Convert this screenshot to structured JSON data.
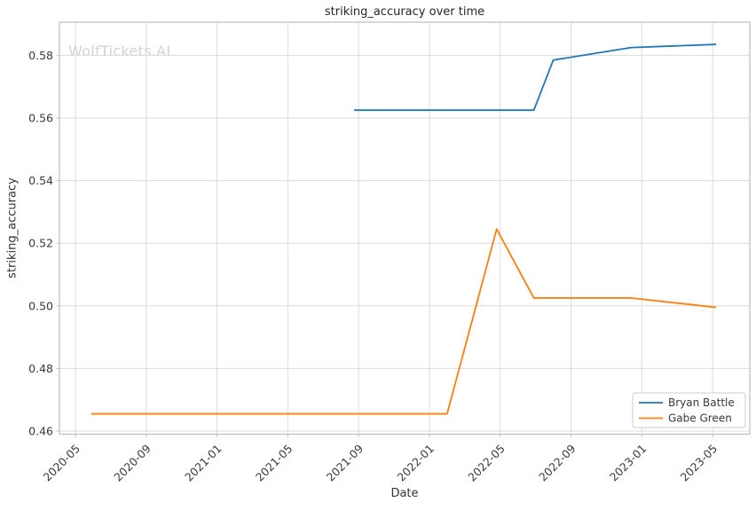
{
  "watermark": {
    "text": "WolfTickets.AI",
    "color": "#d3d3d3"
  },
  "chart_data": {
    "type": "line",
    "title": "striking_accuracy over time",
    "xlabel": "Date",
    "ylabel": "striking_accuracy",
    "grid": true,
    "x_unit": "months since 2020-05",
    "x_tick_labels": [
      "2020-05",
      "2020-09",
      "2021-01",
      "2021-05",
      "2021-09",
      "2022-01",
      "2022-05",
      "2022-09",
      "2023-01",
      "2023-05"
    ],
    "x_tick_month_index": [
      0,
      4,
      8,
      12,
      16,
      20,
      24,
      28,
      32,
      36
    ],
    "y_tick_labels": [
      "0.46",
      "0.48",
      "0.50",
      "0.52",
      "0.54",
      "0.56",
      "0.58"
    ],
    "y_ticks": [
      0.46,
      0.48,
      0.5,
      0.52,
      0.54,
      0.56,
      0.58
    ],
    "x_range_month_index": [
      -0.9,
      38.1
    ],
    "ylim": [
      0.459,
      0.5906
    ],
    "legend": {
      "position": "lower right",
      "entries": [
        "Bryan Battle",
        "Gabe Green"
      ]
    },
    "series": [
      {
        "name": "Bryan Battle",
        "color": "#1f77b4",
        "points": [
          {
            "date": "2021-08",
            "month_index": 15.75,
            "value": 0.5625
          },
          {
            "date": "2022-06",
            "month_index": 25.9,
            "value": 0.5625
          },
          {
            "date": "2022-08",
            "month_index": 27.0,
            "value": 0.5785
          },
          {
            "date": "2022-12",
            "month_index": 31.4,
            "value": 0.5825
          },
          {
            "date": "2023-05",
            "month_index": 36.2,
            "value": 0.5835
          }
        ]
      },
      {
        "name": "Gabe Green",
        "color": "#ff7f0e",
        "points": [
          {
            "date": "2020-05",
            "month_index": 0.9,
            "value": 0.4655
          },
          {
            "date": "2022-02",
            "month_index": 21.0,
            "value": 0.4655
          },
          {
            "date": "2022-04",
            "month_index": 23.8,
            "value": 0.5245
          },
          {
            "date": "2022-06",
            "month_index": 25.9,
            "value": 0.5025
          },
          {
            "date": "2022-12",
            "month_index": 31.4,
            "value": 0.5025
          },
          {
            "date": "2023-05",
            "month_index": 36.2,
            "value": 0.4995
          }
        ]
      }
    ],
    "style": {
      "grid_color": "#dcdcdc",
      "spine_color": "#bdbdbd",
      "tick_color": "#bdbdbd",
      "text_color": "#3a3a3a",
      "legend_border_color": "#cccccc",
      "background": "#ffffff"
    }
  }
}
